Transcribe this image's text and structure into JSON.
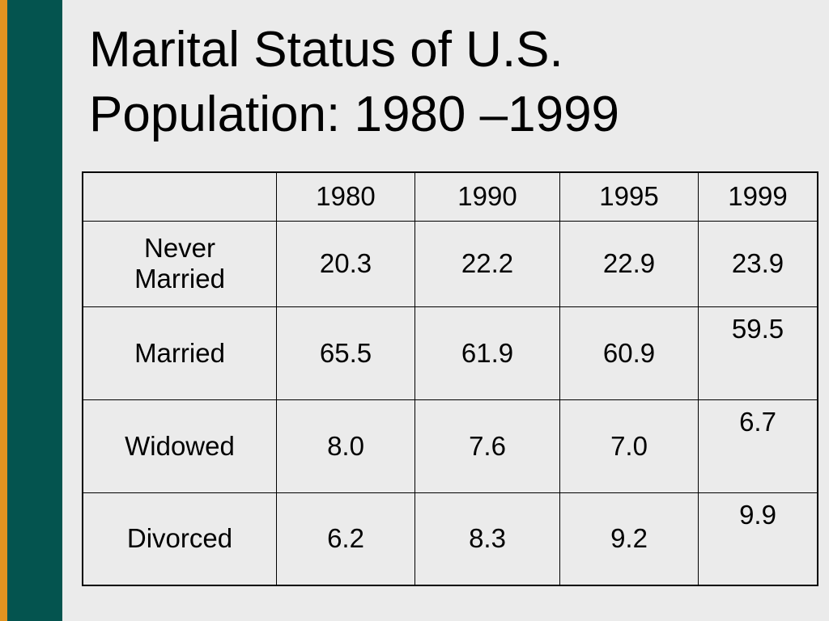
{
  "slide": {
    "title_line1": "Marital Status of U.S.",
    "title_line2": "Population: 1980 –1999",
    "accent_colors": {
      "orange": "#e19320",
      "teal": "#04544f",
      "background": "#ebebeb"
    }
  },
  "table": {
    "header": [
      "",
      "1980",
      "1990",
      "1995",
      "1999"
    ],
    "rows": [
      {
        "label_line1": "Never",
        "label_line2": "Married",
        "values": [
          "20.3",
          "22.2",
          "22.9",
          "23.9"
        ]
      },
      {
        "label_line1": "Married",
        "label_line2": "",
        "values": [
          "65.5",
          "61.9",
          "60.9",
          "59.5"
        ]
      },
      {
        "label_line1": "Widowed",
        "label_line2": "",
        "values": [
          "8.0",
          "7.6",
          "7.0",
          "6.7"
        ]
      },
      {
        "label_line1": "Divorced",
        "label_line2": "",
        "values": [
          "6.2",
          "8.3",
          "9.2",
          "9.9"
        ]
      }
    ]
  }
}
